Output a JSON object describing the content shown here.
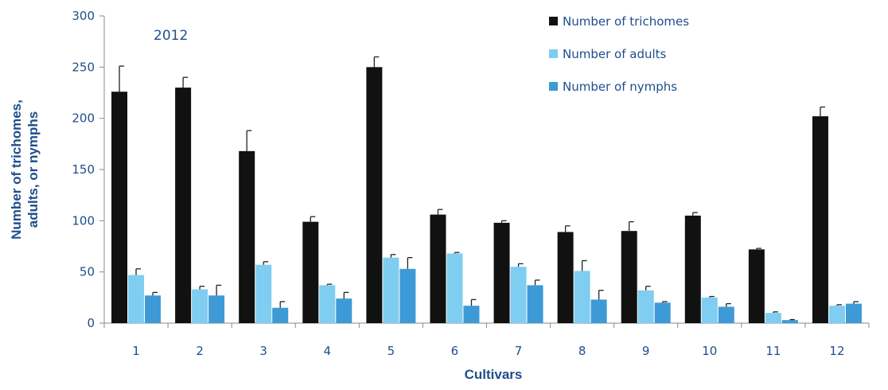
{
  "chart_data": {
    "type": "bar",
    "annotation": "2012",
    "xlabel": "Cultivars",
    "ylabel": "Number of trichomes, adults, or nymphs",
    "ylabel_lines": [
      "Number of trichomes,",
      "adults, or nymphs"
    ],
    "ylim": [
      0,
      300
    ],
    "yticks": [
      0,
      50,
      100,
      150,
      200,
      250,
      300
    ],
    "categories": [
      "1",
      "2",
      "3",
      "4",
      "5",
      "6",
      "7",
      "8",
      "9",
      "10",
      "11",
      "12"
    ],
    "series": [
      {
        "name": "Number of trichomes",
        "color": "#111111",
        "values": [
          226,
          230,
          168,
          99,
          250,
          106,
          98,
          89,
          90,
          105,
          72,
          202
        ],
        "errors": [
          25,
          10,
          20,
          5,
          10,
          5,
          2,
          6,
          9,
          3,
          1,
          9
        ]
      },
      {
        "name": "Number of adults",
        "color": "#7fcdf0",
        "values": [
          47,
          33,
          57,
          37,
          64,
          68,
          55,
          51,
          32,
          25,
          10,
          17
        ],
        "errors": [
          6,
          3,
          3,
          1,
          3,
          1,
          3,
          10,
          4,
          1,
          1,
          1
        ]
      },
      {
        "name": "Number of nymphs",
        "color": "#3e9ad6",
        "values": [
          27,
          27,
          15,
          24,
          53,
          17,
          37,
          23,
          20,
          16,
          3,
          19
        ],
        "errors": [
          3,
          10,
          6,
          6,
          11,
          6,
          5,
          9,
          1,
          3,
          0.5,
          2
        ]
      }
    ],
    "legend": "top-right",
    "grid": false
  }
}
